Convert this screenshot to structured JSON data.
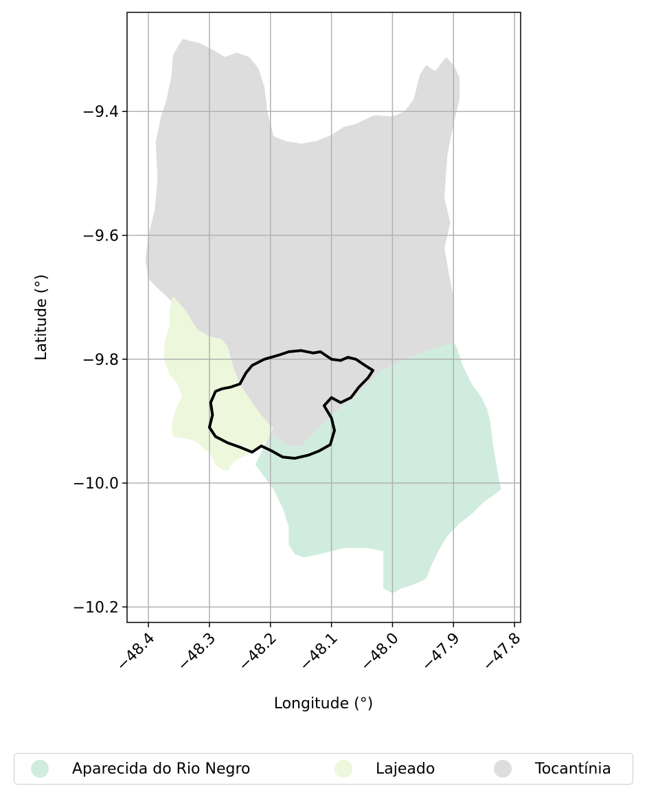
{
  "chart_data": {
    "type": "map",
    "xlabel": "Longitude (°)",
    "ylabel": "Latitude (°)",
    "xlim": [
      -48.435,
      -47.79
    ],
    "ylim": [
      -10.225,
      -9.24
    ],
    "grid": true,
    "x_ticks": [
      {
        "value": -48.4,
        "label": "−48.4"
      },
      {
        "value": -48.3,
        "label": "−48.3"
      },
      {
        "value": -48.2,
        "label": "−48.2"
      },
      {
        "value": -48.1,
        "label": "−48.1"
      },
      {
        "value": -48.0,
        "label": "−48.0"
      },
      {
        "value": -47.9,
        "label": "−47.9"
      },
      {
        "value": -47.8,
        "label": "−47.8"
      }
    ],
    "y_ticks": [
      {
        "value": -9.4,
        "label": "−9.4"
      },
      {
        "value": -9.6,
        "label": "−9.6"
      },
      {
        "value": -9.8,
        "label": "−9.8"
      },
      {
        "value": -10.0,
        "label": "−10.0"
      },
      {
        "value": -10.2,
        "label": "−10.2"
      }
    ],
    "regions": [
      {
        "name": "Tocantínia",
        "color": "#dddddd",
        "coordinates": [
          [
            -48.343,
            -9.283
          ],
          [
            -48.335,
            -9.285
          ],
          [
            -48.315,
            -9.29
          ],
          [
            -48.295,
            -9.3
          ],
          [
            -48.275,
            -9.312
          ],
          [
            -48.255,
            -9.305
          ],
          [
            -48.235,
            -9.312
          ],
          [
            -48.22,
            -9.33
          ],
          [
            -48.21,
            -9.36
          ],
          [
            -48.205,
            -9.4
          ],
          [
            -48.195,
            -9.44
          ],
          [
            -48.175,
            -9.448
          ],
          [
            -48.15,
            -9.452
          ],
          [
            -48.125,
            -9.448
          ],
          [
            -48.1,
            -9.438
          ],
          [
            -48.08,
            -9.425
          ],
          [
            -48.06,
            -9.42
          ],
          [
            -48.03,
            -9.406
          ],
          [
            -48.0,
            -9.408
          ],
          [
            -47.98,
            -9.4
          ],
          [
            -47.965,
            -9.38
          ],
          [
            -47.955,
            -9.34
          ],
          [
            -47.945,
            -9.325
          ],
          [
            -47.93,
            -9.335
          ],
          [
            -47.912,
            -9.312
          ],
          [
            -47.9,
            -9.325
          ],
          [
            -47.89,
            -9.345
          ],
          [
            -47.89,
            -9.38
          ],
          [
            -47.9,
            -9.42
          ],
          [
            -47.91,
            -9.47
          ],
          [
            -47.915,
            -9.54
          ],
          [
            -47.905,
            -9.58
          ],
          [
            -47.915,
            -9.62
          ],
          [
            -47.908,
            -9.66
          ],
          [
            -47.9,
            -9.7
          ],
          [
            -47.9,
            -9.75
          ],
          [
            -47.9,
            -9.772
          ],
          [
            -47.94,
            -9.79
          ],
          [
            -47.98,
            -9.8
          ],
          [
            -48.02,
            -9.82
          ],
          [
            -48.06,
            -9.86
          ],
          [
            -48.1,
            -9.89
          ],
          [
            -48.13,
            -9.92
          ],
          [
            -48.15,
            -9.94
          ],
          [
            -48.17,
            -9.94
          ],
          [
            -48.2,
            -9.92
          ],
          [
            -48.23,
            -9.88
          ],
          [
            -48.25,
            -9.84
          ],
          [
            -48.262,
            -9.81
          ],
          [
            -48.27,
            -9.78
          ],
          [
            -48.28,
            -9.768
          ],
          [
            -48.3,
            -9.763
          ],
          [
            -48.32,
            -9.752
          ],
          [
            -48.34,
            -9.72
          ],
          [
            -48.36,
            -9.708
          ],
          [
            -48.38,
            -9.69
          ],
          [
            -48.4,
            -9.67
          ],
          [
            -48.405,
            -9.64
          ],
          [
            -48.4,
            -9.6
          ],
          [
            -48.39,
            -9.56
          ],
          [
            -48.385,
            -9.51
          ],
          [
            -48.388,
            -9.45
          ],
          [
            -48.38,
            -9.41
          ],
          [
            -48.37,
            -9.38
          ],
          [
            -48.362,
            -9.34
          ],
          [
            -48.36,
            -9.31
          ],
          [
            -48.35,
            -9.292
          ],
          [
            -48.343,
            -9.283
          ]
        ]
      },
      {
        "name": "Lajeado",
        "color": "#ecf7dc",
        "coordinates": [
          [
            -48.36,
            -9.698
          ],
          [
            -48.34,
            -9.72
          ],
          [
            -48.32,
            -9.752
          ],
          [
            -48.3,
            -9.763
          ],
          [
            -48.28,
            -9.768
          ],
          [
            -48.27,
            -9.78
          ],
          [
            -48.262,
            -9.81
          ],
          [
            -48.25,
            -9.84
          ],
          [
            -48.23,
            -9.87
          ],
          [
            -48.215,
            -9.89
          ],
          [
            -48.195,
            -9.912
          ],
          [
            -48.205,
            -9.93
          ],
          [
            -48.22,
            -9.945
          ],
          [
            -48.24,
            -9.955
          ],
          [
            -48.26,
            -9.965
          ],
          [
            -48.27,
            -9.98
          ],
          [
            -48.28,
            -9.978
          ],
          [
            -48.29,
            -9.97
          ],
          [
            -48.3,
            -9.95
          ],
          [
            -48.31,
            -9.945
          ],
          [
            -48.318,
            -9.935
          ],
          [
            -48.33,
            -9.93
          ],
          [
            -48.34,
            -9.928
          ],
          [
            -48.36,
            -9.925
          ],
          [
            -48.362,
            -9.905
          ],
          [
            -48.355,
            -9.88
          ],
          [
            -48.345,
            -9.86
          ],
          [
            -48.352,
            -9.84
          ],
          [
            -48.365,
            -9.825
          ],
          [
            -48.375,
            -9.8
          ],
          [
            -48.373,
            -9.77
          ],
          [
            -48.365,
            -9.745
          ],
          [
            -48.365,
            -9.72
          ],
          [
            -48.36,
            -9.698
          ]
        ]
      },
      {
        "name": "Aparecida do Rio Negro",
        "color": "#d0ecdf",
        "coordinates": [
          [
            -47.9,
            -9.772
          ],
          [
            -47.98,
            -9.8
          ],
          [
            -48.02,
            -9.82
          ],
          [
            -48.06,
            -9.86
          ],
          [
            -48.1,
            -9.89
          ],
          [
            -48.13,
            -9.92
          ],
          [
            -48.15,
            -9.94
          ],
          [
            -48.17,
            -9.94
          ],
          [
            -48.2,
            -9.92
          ],
          [
            -48.215,
            -9.95
          ],
          [
            -48.225,
            -9.97
          ],
          [
            -48.21,
            -9.99
          ],
          [
            -48.195,
            -10.01
          ],
          [
            -48.18,
            -10.04
          ],
          [
            -48.17,
            -10.07
          ],
          [
            -48.17,
            -10.1
          ],
          [
            -48.16,
            -10.115
          ],
          [
            -48.145,
            -10.12
          ],
          [
            -48.12,
            -10.115
          ],
          [
            -48.08,
            -10.105
          ],
          [
            -48.04,
            -10.105
          ],
          [
            -48.015,
            -10.11
          ],
          [
            -48.015,
            -10.14
          ],
          [
            -48.015,
            -10.17
          ],
          [
            -48.0,
            -10.178
          ],
          [
            -47.985,
            -10.17
          ],
          [
            -47.968,
            -10.165
          ],
          [
            -47.945,
            -10.155
          ],
          [
            -47.935,
            -10.13
          ],
          [
            -47.925,
            -10.11
          ],
          [
            -47.91,
            -10.085
          ],
          [
            -47.89,
            -10.065
          ],
          [
            -47.87,
            -10.05
          ],
          [
            -47.85,
            -10.03
          ],
          [
            -47.835,
            -10.02
          ],
          [
            -47.822,
            -10.01
          ],
          [
            -47.828,
            -9.98
          ],
          [
            -47.835,
            -9.94
          ],
          [
            -47.84,
            -9.9
          ],
          [
            -47.845,
            -9.88
          ],
          [
            -47.855,
            -9.86
          ],
          [
            -47.87,
            -9.84
          ],
          [
            -47.885,
            -9.81
          ],
          [
            -47.895,
            -9.78
          ],
          [
            -47.9,
            -9.772
          ]
        ]
      }
    ],
    "outline": {
      "name": "boundary",
      "color": "#000000",
      "coordinates": [
        [
          -48.28,
          -9.848
        ],
        [
          -48.265,
          -9.845
        ],
        [
          -48.25,
          -9.84
        ],
        [
          -48.24,
          -9.822
        ],
        [
          -48.23,
          -9.81
        ],
        [
          -48.21,
          -9.8
        ],
        [
          -48.185,
          -9.793
        ],
        [
          -48.17,
          -9.788
        ],
        [
          -48.15,
          -9.786
        ],
        [
          -48.13,
          -9.79
        ],
        [
          -48.118,
          -9.788
        ],
        [
          -48.1,
          -9.8
        ],
        [
          -48.085,
          -9.802
        ],
        [
          -48.073,
          -9.797
        ],
        [
          -48.06,
          -9.8
        ],
        [
          -48.045,
          -9.81
        ],
        [
          -48.032,
          -9.818
        ],
        [
          -48.04,
          -9.83
        ],
        [
          -48.055,
          -9.845
        ],
        [
          -48.068,
          -9.862
        ],
        [
          -48.085,
          -9.87
        ],
        [
          -48.1,
          -9.862
        ],
        [
          -48.112,
          -9.875
        ],
        [
          -48.1,
          -9.895
        ],
        [
          -48.095,
          -9.915
        ],
        [
          -48.102,
          -9.938
        ],
        [
          -48.12,
          -9.948
        ],
        [
          -48.138,
          -9.955
        ],
        [
          -48.16,
          -9.96
        ],
        [
          -48.18,
          -9.958
        ],
        [
          -48.198,
          -9.948
        ],
        [
          -48.215,
          -9.94
        ],
        [
          -48.23,
          -9.95
        ],
        [
          -48.25,
          -9.942
        ],
        [
          -48.27,
          -9.935
        ],
        [
          -48.29,
          -9.925
        ],
        [
          -48.3,
          -9.91
        ],
        [
          -48.295,
          -9.89
        ],
        [
          -48.298,
          -9.87
        ],
        [
          -48.29,
          -9.852
        ],
        [
          -48.28,
          -9.848
        ]
      ]
    }
  },
  "legend": {
    "items": [
      {
        "label": "Aparecida do Rio Negro",
        "color": "#d0ecdf"
      },
      {
        "label": "Lajeado",
        "color": "#ecf7dc"
      },
      {
        "label": "Tocantínia",
        "color": "#dddddd"
      }
    ]
  }
}
